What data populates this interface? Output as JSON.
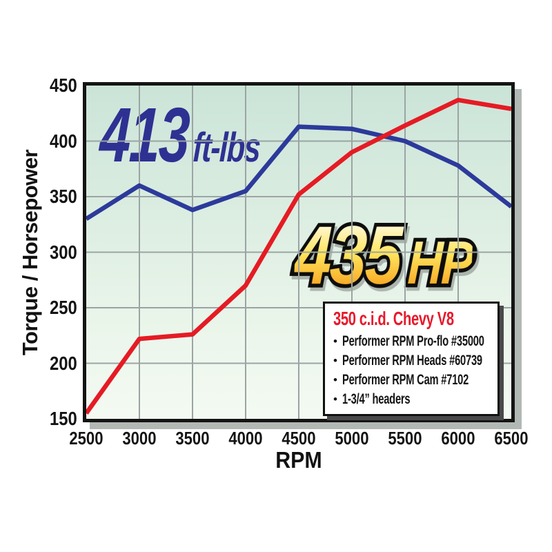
{
  "figure": {
    "background": "#ffffff"
  },
  "chart_data": {
    "type": "line",
    "title": "",
    "xlabel": "RPM",
    "ylabel": "Torque / Horsepower",
    "xlim": [
      2500,
      6500
    ],
    "ylim": [
      150,
      450
    ],
    "grid": true,
    "legend_position": "none",
    "x": [
      2500,
      3000,
      3500,
      4000,
      4500,
      5000,
      5500,
      6000,
      6500
    ],
    "x_tick_labels": [
      "2500",
      "3000",
      "3500",
      "4000",
      "4500",
      "5000",
      "5500",
      "6000",
      "6500"
    ],
    "y_tick_labels": [
      "450",
      "400",
      "350",
      "300",
      "250",
      "200",
      "150"
    ],
    "gridline_color": "#9ba4a4",
    "plot_bg_top": "#cbe4d8",
    "plot_bg_bottom": "#f4faf2",
    "series": [
      {
        "name": "Torque (ft-lbs)",
        "color": "#2c3a9b",
        "values": [
          330,
          360,
          338,
          355,
          413,
          411,
          400,
          378,
          341
        ]
      },
      {
        "name": "Horsepower (HP)",
        "color": "#e51b24",
        "values": [
          155,
          222,
          226,
          270,
          352,
          390,
          414,
          437,
          429
        ]
      }
    ]
  },
  "annotations": {
    "torque_peak": {
      "value": "413",
      "unit": "ft-lbs",
      "color": "#2e3192"
    },
    "hp_peak": {
      "value": "435",
      "unit": "HP",
      "gradient_top": "#fffdf0",
      "gradient_mid": "#ffe45c",
      "gradient_bottom": "#f7a11d",
      "outline_color": "#0d0d0d"
    }
  },
  "spec_box": {
    "title": "350 c.i.d. Chevy V8",
    "title_color": "#e8192b",
    "bullet_icon": "•",
    "items": [
      "Performer RPM Pro-flo #35000",
      "Performer RPM Heads #60739",
      "Performer RPM Cam #7102",
      "1-3/4” headers"
    ]
  }
}
